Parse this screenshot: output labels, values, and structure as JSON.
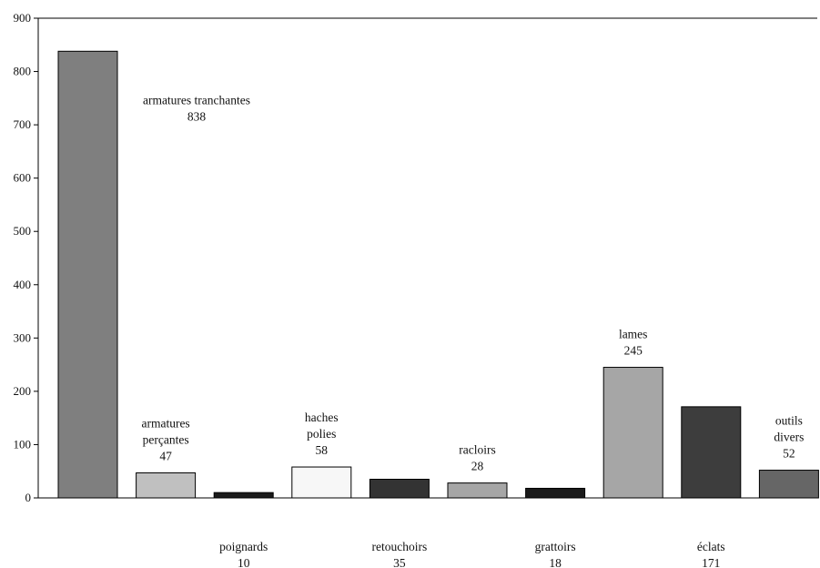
{
  "chart_data": {
    "type": "bar",
    "title": "",
    "xlabel": "",
    "ylabel": "",
    "ylim": [
      0,
      900
    ],
    "yticks": [
      0,
      100,
      200,
      300,
      400,
      500,
      600,
      700,
      800,
      900
    ],
    "grid": false,
    "legend": "none",
    "bars": [
      {
        "label_lines": [
          "armatures tranchantes",
          "838"
        ],
        "value": 838,
        "color": "#7f7f7f",
        "label_position": "beside-right"
      },
      {
        "label_lines": [
          "armatures",
          "perçantes",
          "47"
        ],
        "value": 47,
        "color": "#c0c0c0",
        "label_position": "above"
      },
      {
        "label_lines": [
          "poignards",
          "10"
        ],
        "value": 10,
        "color": "#1a1a1a",
        "label_position": "below-axis"
      },
      {
        "label_lines": [
          "haches",
          "polies",
          "58"
        ],
        "value": 58,
        "color": "#f7f7f7",
        "label_position": "above"
      },
      {
        "label_lines": [
          "retouchoirs",
          "35"
        ],
        "value": 35,
        "color": "#333333",
        "label_position": "below-axis"
      },
      {
        "label_lines": [
          "racloirs",
          "28"
        ],
        "value": 28,
        "color": "#a6a6a6",
        "label_position": "above"
      },
      {
        "label_lines": [
          "grattoirs",
          "18"
        ],
        "value": 18,
        "color": "#1a1a1a",
        "label_position": "below-axis"
      },
      {
        "label_lines": [
          "lames",
          "245"
        ],
        "value": 245,
        "color": "#a6a6a6",
        "label_position": "above"
      },
      {
        "label_lines": [
          "éclats",
          "171"
        ],
        "value": 171,
        "color": "#3d3d3d",
        "label_position": "below-axis"
      },
      {
        "label_lines": [
          "outils",
          "divers",
          "52"
        ],
        "value": 52,
        "color": "#666666",
        "label_position": "above"
      }
    ]
  }
}
